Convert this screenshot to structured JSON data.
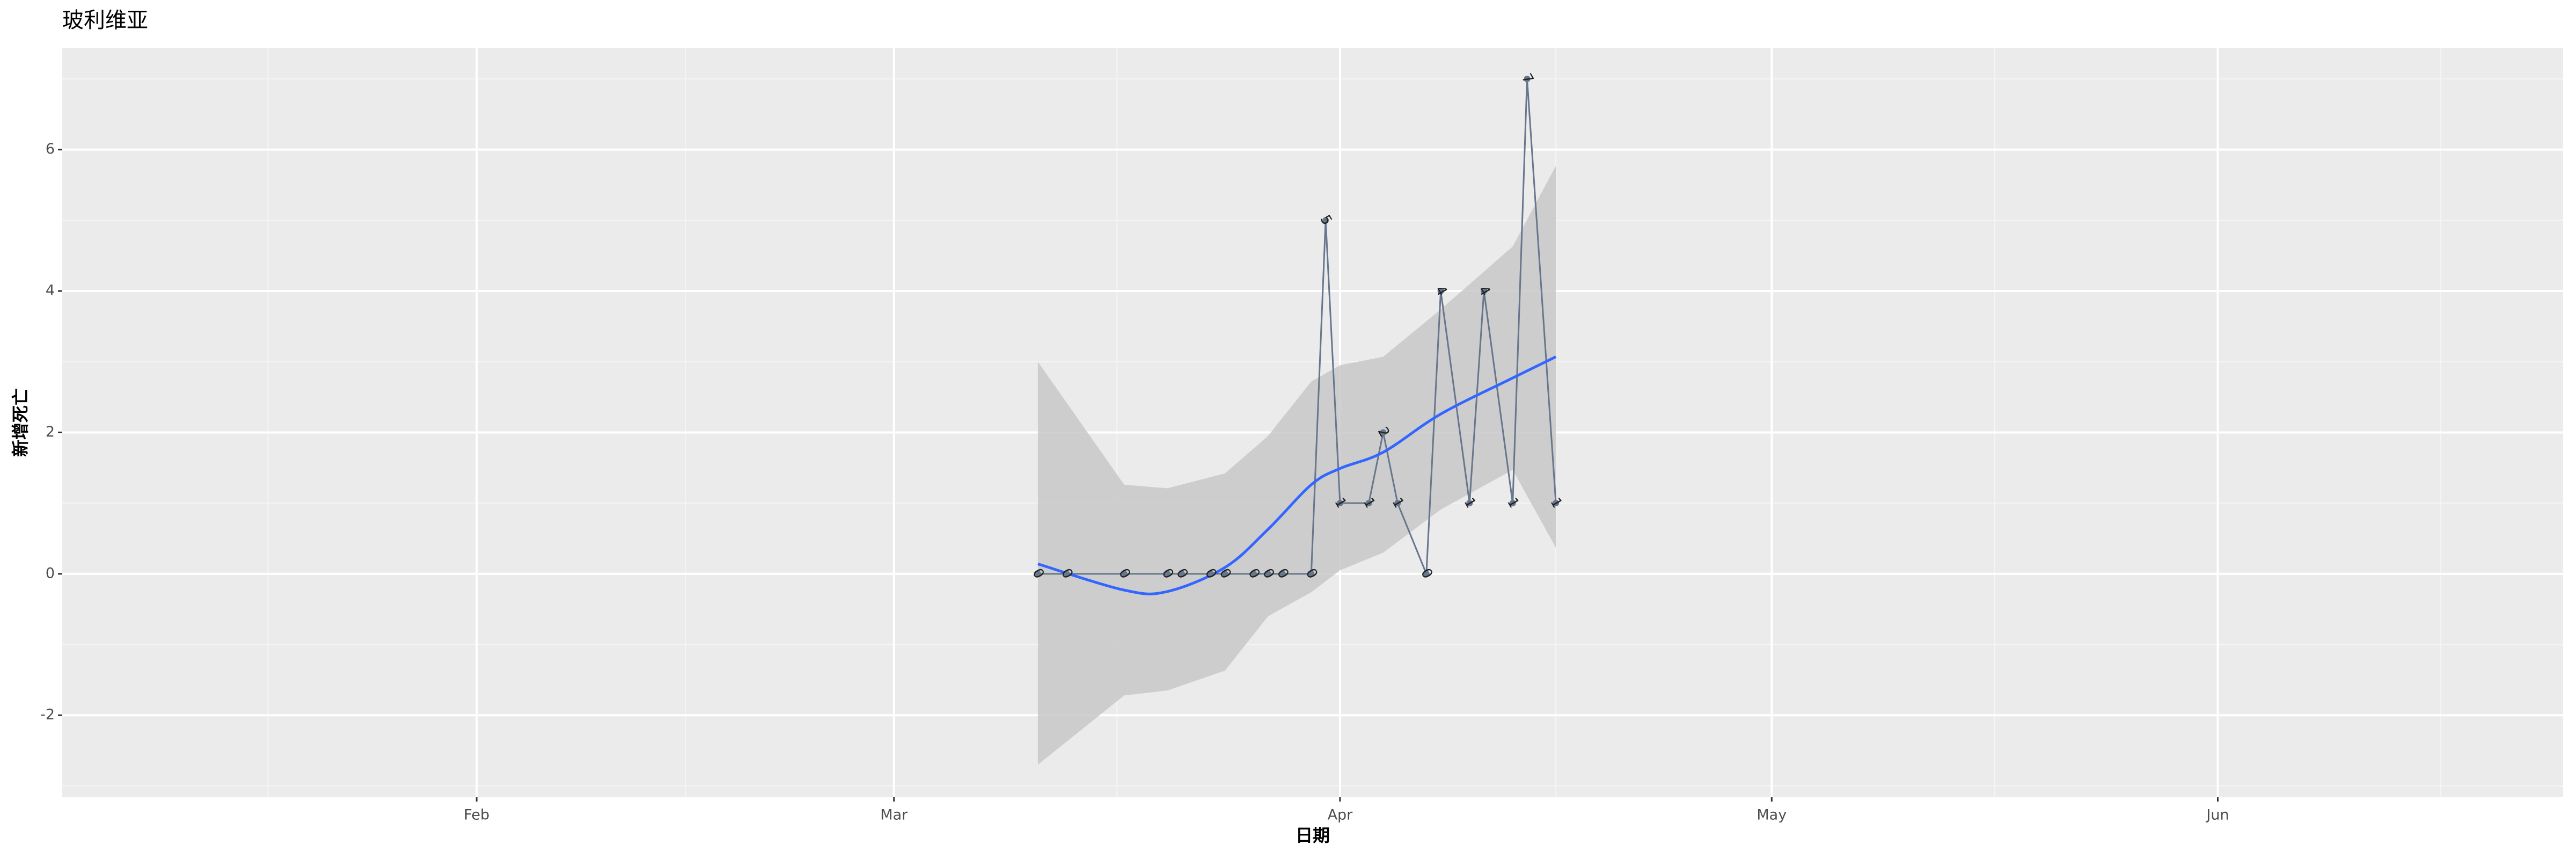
{
  "chart_data": {
    "type": "line",
    "title": "玻利维亚",
    "x_label": "日期",
    "y_label": "新增死亡",
    "x": [
      71,
      73,
      77,
      80,
      81,
      83,
      84,
      86,
      87,
      88,
      90,
      91,
      92,
      94,
      95,
      96,
      98,
      99,
      101,
      102,
      104,
      105,
      107
    ],
    "values": [
      0,
      0,
      0,
      0,
      0,
      0,
      0,
      0,
      0,
      0,
      0,
      5,
      1,
      1,
      2,
      1,
      0,
      4,
      1,
      4,
      1,
      7,
      1
    ],
    "color": "#66768c",
    "smooth": {
      "color": "#3366ff",
      "band_color": "#c8c8c8",
      "x": [
        71,
        77,
        80,
        84,
        87,
        90,
        92,
        95,
        99,
        104,
        107
      ],
      "values": [
        0.14,
        -0.23,
        -0.25,
        0.09,
        0.63,
        1.26,
        1.49,
        1.72,
        2.26,
        2.77,
        3.07
      ],
      "lower": [
        -2.7,
        -1.72,
        -1.65,
        -1.37,
        -0.6,
        -0.26,
        0.05,
        0.3,
        0.91,
        1.47,
        0.37
      ],
      "upper": [
        3.0,
        1.26,
        1.21,
        1.42,
        1.95,
        2.72,
        2.95,
        3.07,
        3.74,
        4.63,
        5.77
      ]
    },
    "xlim": [
      3.2,
      177
    ],
    "xticks": [
      {
        "value": 32,
        "label": "Feb"
      },
      {
        "value": 61,
        "label": "Mar"
      },
      {
        "value": 92,
        "label": "Apr"
      },
      {
        "value": 122,
        "label": "May"
      },
      {
        "value": 153,
        "label": "Jun"
      }
    ],
    "ylim": [
      -3.16,
      7.44
    ],
    "yticks": [
      -2,
      0,
      2,
      4,
      6
    ],
    "grid": true
  }
}
